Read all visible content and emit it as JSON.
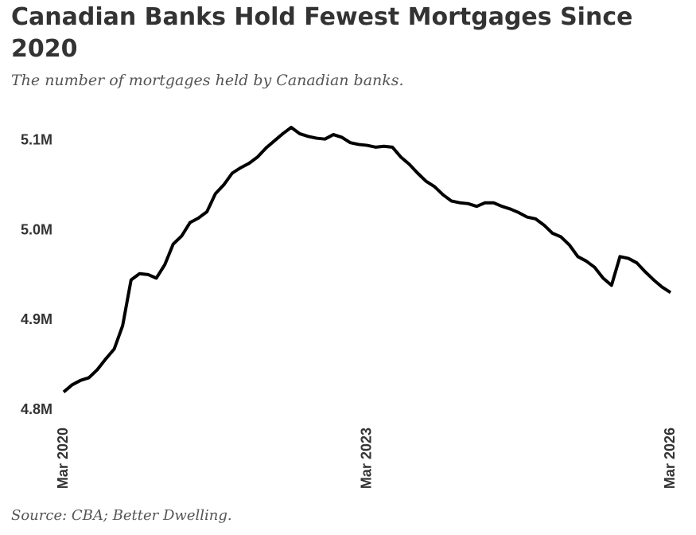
{
  "chart_data": {
    "type": "line",
    "title": "Canadian Banks Hold Fewest Mortgages Since 2020",
    "subtitle": "The number of mortgages held by Canadian banks.",
    "source": "Source: CBA; Better Dwelling.",
    "categories": [
      "Mar 2020",
      null,
      null,
      null,
      null,
      null,
      null,
      null,
      null,
      null,
      null,
      null,
      null,
      null,
      null,
      null,
      null,
      null,
      null,
      null,
      null,
      null,
      null,
      null,
      null,
      null,
      null,
      null,
      null,
      null,
      null,
      null,
      null,
      null,
      null,
      null,
      "Mar 2023",
      null,
      null,
      null,
      null,
      null,
      null,
      null,
      null,
      null,
      null,
      null,
      null,
      null,
      null,
      null,
      null,
      null,
      null,
      null,
      null,
      null,
      null,
      null,
      null,
      null,
      null,
      null,
      null,
      null,
      null,
      null,
      null,
      null,
      null,
      null,
      "Mar 2026"
    ],
    "series": [
      {
        "name": "Mortgages",
        "color": "#000000",
        "values": [
          4.82,
          4.828,
          4.833,
          4.836,
          4.845,
          4.857,
          4.868,
          4.894,
          4.945,
          4.952,
          4.951,
          4.947,
          4.962,
          4.985,
          4.994,
          5.009,
          5.014,
          5.021,
          5.041,
          5.051,
          5.064,
          5.07,
          5.075,
          5.082,
          5.092,
          5.1,
          5.108,
          5.115,
          5.108,
          5.105,
          5.103,
          5.102,
          5.107,
          5.104,
          5.098,
          5.096,
          5.095,
          5.093,
          5.094,
          5.093,
          5.082,
          5.074,
          5.064,
          5.055,
          5.049,
          5.04,
          5.033,
          5.031,
          5.03,
          5.027,
          5.031,
          5.031,
          5.027,
          5.024,
          5.02,
          5.015,
          5.013,
          5.006,
          4.997,
          4.993,
          4.984,
          4.971,
          4.966,
          4.959,
          4.947,
          4.939,
          4.971,
          4.969,
          4.964,
          4.954,
          4.945,
          4.937,
          4.931
        ]
      }
    ],
    "ylim": [
      4.8,
      5.12
    ],
    "yticks": [
      {
        "value": 4.8,
        "label": "4.8M"
      },
      {
        "value": 4.9,
        "label": "4.9M"
      },
      {
        "value": 5.0,
        "label": "5.0M"
      },
      {
        "value": 5.1,
        "label": "5.1M"
      }
    ],
    "grid": false
  }
}
